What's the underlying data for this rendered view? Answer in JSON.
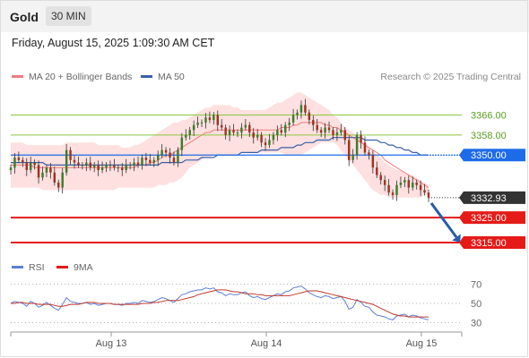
{
  "header": {
    "instrument": "Gold",
    "timeframe": "30 MIN"
  },
  "timestamp": "Friday, August 15, 2025 1:09:30 AM CET",
  "legend": {
    "bollinger": "MA 20 + Bollinger Bands",
    "ma50": "MA 50",
    "rsi": "RSI",
    "rsi_ma": "9MA"
  },
  "credit": "Research © 2025 Trading Central",
  "colors": {
    "bollinger": "#f07c7c",
    "ma50": "#3a5fa8",
    "candle_up": "#3a7d2c",
    "candle_down": "#9e3322",
    "support": "#e41b17",
    "resistance": "#8cc63f",
    "pivot": "#1e6be8",
    "rsi": "#5b7fd8",
    "rsi_ma": "#c0392b"
  },
  "chart_data": [
    {
      "type": "candlestick",
      "title": "Gold 30 MIN",
      "x_tick_labels": [
        "Aug 13",
        "Aug 14",
        "Aug 15"
      ],
      "price_levels": [
        {
          "label": "3366.00",
          "value": 3366.0,
          "kind": "resistance"
        },
        {
          "label": "3358.00",
          "value": 3358.0,
          "kind": "resistance"
        },
        {
          "label": "3350.00",
          "value": 3350.0,
          "kind": "pivot"
        },
        {
          "label": "3332.93",
          "value": 3332.93,
          "kind": "last"
        },
        {
          "label": "3325.00",
          "value": 3325.0,
          "kind": "support"
        },
        {
          "label": "3315.00",
          "value": 3315.0,
          "kind": "support"
        }
      ],
      "last_price": 3332.93,
      "forecast_arrow": {
        "from": 3332.93,
        "to": 3315.0,
        "direction": "down"
      },
      "ylim": [
        3310,
        3378
      ],
      "close_series": [
        3345,
        3349,
        3348,
        3347,
        3344,
        3347,
        3346,
        3341,
        3343,
        3345,
        3343,
        3339,
        3337,
        3343,
        3352,
        3348,
        3347,
        3346,
        3346,
        3347,
        3345,
        3346,
        3344,
        3345,
        3346,
        3346,
        3345,
        3345,
        3344,
        3346,
        3346,
        3347,
        3346,
        3349,
        3348,
        3347,
        3348,
        3350,
        3352,
        3351,
        3349,
        3347,
        3352,
        3357,
        3358,
        3360,
        3362,
        3363,
        3363,
        3365,
        3364,
        3366,
        3362,
        3361,
        3358,
        3360,
        3359,
        3359,
        3361,
        3362,
        3359,
        3357,
        3358,
        3355,
        3354,
        3356,
        3358,
        3360,
        3359,
        3362,
        3363,
        3366,
        3367,
        3370,
        3367,
        3364,
        3362,
        3360,
        3359,
        3361,
        3360,
        3358,
        3359,
        3360,
        3356,
        3348,
        3350,
        3358,
        3355,
        3351,
        3350,
        3345,
        3342,
        3340,
        3338,
        3335,
        3334,
        3338,
        3339,
        3340,
        3337,
        3339,
        3338,
        3336,
        3335,
        3333
      ],
      "bollinger": {
        "upper": [
          3355,
          3355,
          3355,
          3355,
          3354,
          3354,
          3354,
          3354,
          3354,
          3354,
          3354,
          3354,
          3354,
          3354,
          3355,
          3355,
          3355,
          3355,
          3355,
          3355,
          3355,
          3355,
          3354,
          3354,
          3354,
          3354,
          3354,
          3354,
          3353,
          3353,
          3353,
          3354,
          3354,
          3355,
          3356,
          3357,
          3358,
          3359,
          3360,
          3361,
          3362,
          3363,
          3363,
          3364,
          3364,
          3365,
          3366,
          3367,
          3368,
          3369,
          3369,
          3370,
          3370,
          3370,
          3370,
          3370,
          3369,
          3369,
          3368,
          3368,
          3368,
          3368,
          3368,
          3368,
          3368,
          3369,
          3370,
          3371,
          3371,
          3372,
          3373,
          3374,
          3375,
          3375,
          3374,
          3373,
          3372,
          3371,
          3370,
          3369,
          3368,
          3366,
          3365,
          3363,
          3361,
          3360,
          3359,
          3358,
          3356,
          3355,
          3353,
          3352,
          3350,
          3349,
          3347,
          3346,
          3345,
          3344,
          3344,
          3343,
          3342,
          3342,
          3341,
          3340,
          3339,
          3338
        ],
        "middle": [
          3346,
          3346,
          3346,
          3346,
          3346,
          3346,
          3345,
          3345,
          3345,
          3345,
          3345,
          3345,
          3345,
          3345,
          3345,
          3345,
          3345,
          3345,
          3345,
          3345,
          3345,
          3345,
          3345,
          3345,
          3345,
          3345,
          3345,
          3345,
          3345,
          3345,
          3345,
          3345,
          3346,
          3346,
          3346,
          3347,
          3347,
          3348,
          3349,
          3350,
          3350,
          3351,
          3352,
          3353,
          3354,
          3355,
          3356,
          3357,
          3358,
          3359,
          3359,
          3360,
          3360,
          3360,
          3360,
          3360,
          3360,
          3360,
          3360,
          3360,
          3360,
          3360,
          3360,
          3360,
          3360,
          3360,
          3360,
          3360,
          3361,
          3361,
          3361,
          3362,
          3362,
          3363,
          3363,
          3363,
          3363,
          3363,
          3363,
          3362,
          3362,
          3361,
          3361,
          3360,
          3359,
          3358,
          3357,
          3356,
          3355,
          3354,
          3353,
          3352,
          3351,
          3350,
          3348,
          3347,
          3346,
          3345,
          3344,
          3343,
          3342,
          3341,
          3340,
          3339,
          3338,
          3337
        ],
        "lower": [
          3337,
          3337,
          3337,
          3337,
          3337,
          3337,
          3337,
          3337,
          3336,
          3336,
          3336,
          3336,
          3336,
          3336,
          3336,
          3336,
          3336,
          3336,
          3336,
          3336,
          3336,
          3336,
          3336,
          3336,
          3336,
          3336,
          3336,
          3337,
          3337,
          3337,
          3337,
          3337,
          3337,
          3337,
          3337,
          3337,
          3337,
          3338,
          3338,
          3338,
          3339,
          3339,
          3340,
          3341,
          3343,
          3345,
          3346,
          3347,
          3348,
          3349,
          3349,
          3350,
          3350,
          3350,
          3350,
          3350,
          3350,
          3350,
          3351,
          3351,
          3351,
          3351,
          3351,
          3351,
          3351,
          3351,
          3351,
          3351,
          3351,
          3350,
          3350,
          3350,
          3350,
          3350,
          3351,
          3352,
          3353,
          3354,
          3355,
          3355,
          3355,
          3355,
          3354,
          3352,
          3350,
          3348,
          3346,
          3344,
          3342,
          3340,
          3338,
          3336,
          3335,
          3334,
          3334,
          3333,
          3333,
          3333,
          3333,
          3333,
          3333,
          3333,
          3333,
          3333,
          3334,
          3334
        ]
      },
      "ma50": [
        3347,
        3347,
        3347,
        3347,
        3347,
        3347,
        3347,
        3347,
        3347,
        3346,
        3346,
        3346,
        3346,
        3346,
        3346,
        3346,
        3346,
        3346,
        3346,
        3346,
        3346,
        3346,
        3346,
        3346,
        3346,
        3346,
        3346,
        3346,
        3346,
        3346,
        3346,
        3346,
        3346,
        3346,
        3346,
        3346,
        3346,
        3346,
        3347,
        3347,
        3347,
        3347,
        3347,
        3347,
        3348,
        3348,
        3348,
        3348,
        3349,
        3349,
        3349,
        3349,
        3350,
        3350,
        3350,
        3350,
        3350,
        3350,
        3351,
        3351,
        3351,
        3351,
        3351,
        3352,
        3352,
        3352,
        3352,
        3352,
        3353,
        3353,
        3353,
        3353,
        3354,
        3354,
        3355,
        3355,
        3355,
        3356,
        3356,
        3356,
        3356,
        3357,
        3357,
        3357,
        3357,
        3357,
        3357,
        3357,
        3357,
        3356,
        3356,
        3356,
        3356,
        3355,
        3355,
        3354,
        3354,
        3353,
        3353,
        3352,
        3352,
        3351,
        3351,
        3350,
        3350,
        3350
      ]
    },
    {
      "type": "line",
      "title": "RSI",
      "y_tick_labels": [
        "70",
        "50",
        "30"
      ],
      "ylim": [
        25,
        75
      ],
      "series": [
        {
          "name": "RSI",
          "values": [
            50,
            52,
            51,
            50,
            47,
            52,
            50,
            46,
            48,
            51,
            48,
            45,
            43,
            49,
            56,
            52,
            51,
            50,
            50,
            51,
            49,
            50,
            48,
            49,
            50,
            50,
            49,
            49,
            48,
            50,
            50,
            51,
            50,
            53,
            52,
            51,
            52,
            54,
            56,
            55,
            53,
            51,
            55,
            59,
            60,
            62,
            63,
            64,
            64,
            66,
            65,
            66,
            62,
            61,
            58,
            60,
            59,
            59,
            61,
            62,
            58,
            56,
            57,
            55,
            54,
            56,
            58,
            60,
            59,
            62,
            63,
            66,
            67,
            68,
            65,
            61,
            59,
            57,
            56,
            58,
            57,
            55,
            56,
            57,
            52,
            44,
            46,
            54,
            51,
            47,
            46,
            41,
            38,
            37,
            36,
            34,
            33,
            37,
            38,
            39,
            36,
            38,
            37,
            35,
            34,
            33
          ]
        },
        {
          "name": "9MA",
          "values": [
            50,
            50,
            51,
            51,
            50,
            50,
            50,
            49,
            49,
            49,
            49,
            48,
            47,
            47,
            48,
            49,
            49,
            49,
            50,
            51,
            51,
            51,
            50,
            50,
            50,
            50,
            49,
            49,
            49,
            49,
            49,
            49,
            49,
            50,
            50,
            50,
            51,
            51,
            52,
            53,
            53,
            53,
            53,
            54,
            55,
            56,
            57,
            59,
            60,
            61,
            62,
            63,
            64,
            64,
            64,
            63,
            62,
            62,
            61,
            60,
            60,
            60,
            59,
            59,
            58,
            58,
            58,
            58,
            58,
            58,
            58,
            59,
            60,
            61,
            62,
            63,
            63,
            63,
            62,
            61,
            60,
            59,
            58,
            57,
            56,
            55,
            54,
            53,
            52,
            51,
            50,
            49,
            47,
            45,
            43,
            41,
            39,
            38,
            37,
            37,
            36,
            36,
            36,
            36,
            36,
            36
          ]
        }
      ]
    }
  ]
}
